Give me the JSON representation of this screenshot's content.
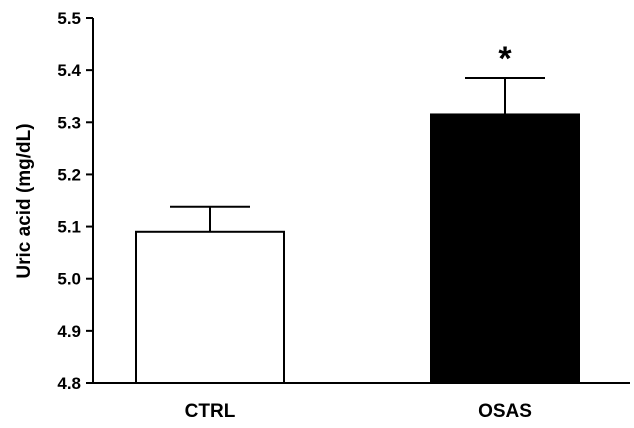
{
  "chart_data": {
    "type": "bar",
    "title": "",
    "xlabel": "",
    "ylabel": "Uric acid (mg/dL)",
    "categories": [
      "CTRL",
      "OSAS"
    ],
    "values": [
      5.09,
      5.315
    ],
    "error_upper": [
      5.138,
      5.385
    ],
    "fills": [
      "#ffffff",
      "#000000"
    ],
    "annotations": [
      "",
      "*"
    ],
    "ylim": [
      4.8,
      5.5
    ],
    "yticks": [
      4.8,
      4.9,
      5.0,
      5.1,
      5.2,
      5.3,
      5.4,
      5.5
    ],
    "ytick_labels": [
      "4.8",
      "4.9",
      "5.0",
      "5.1",
      "5.2",
      "5.3",
      "5.4",
      "5.5"
    ],
    "grid": false,
    "legend": "none"
  }
}
